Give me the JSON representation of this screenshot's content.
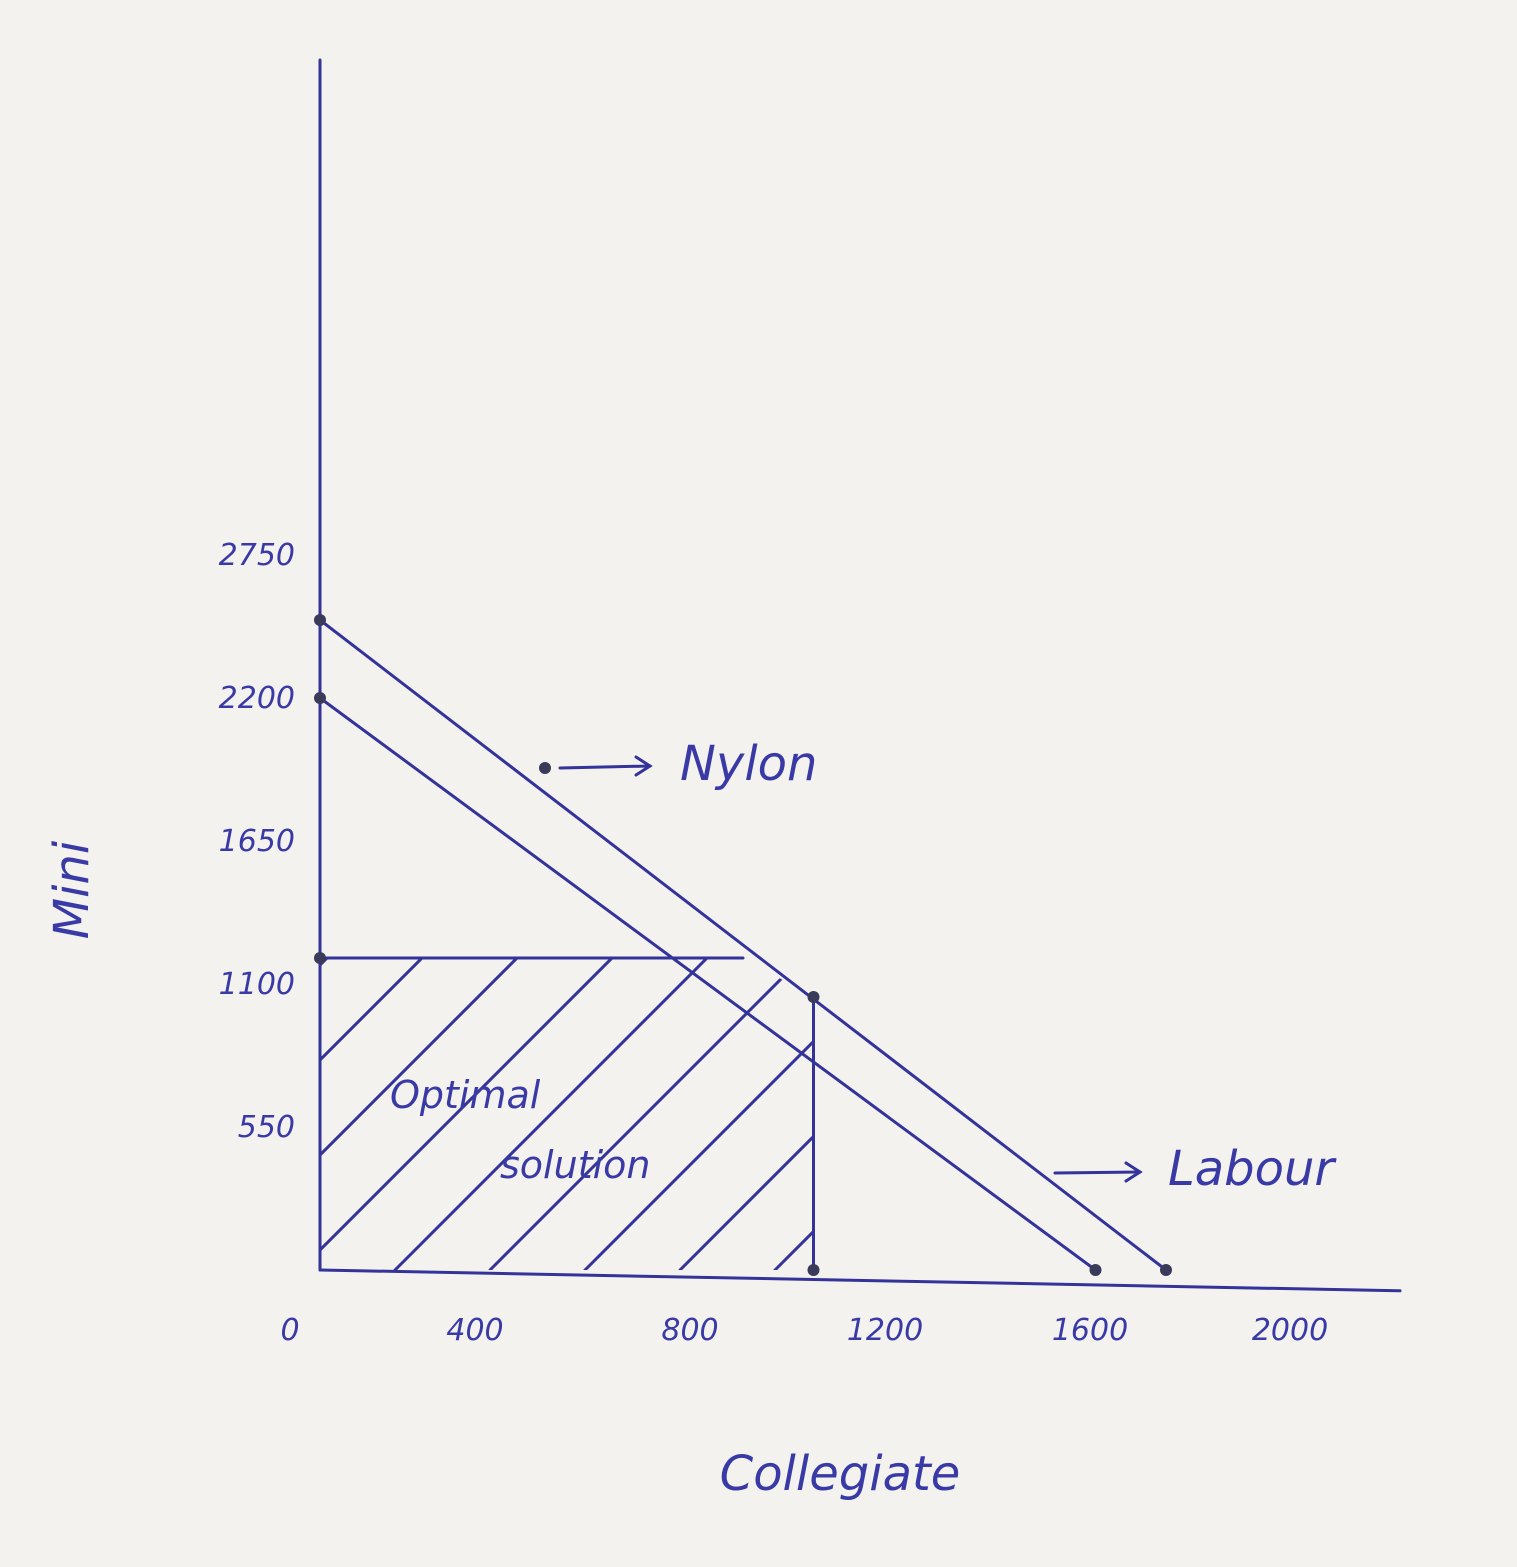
{
  "chart_data": {
    "type": "line",
    "xlabel": "Collegiate",
    "ylabel": "Mini",
    "x_ticks": [
      "0",
      "400",
      "800",
      "1200",
      "1600",
      "2000"
    ],
    "y_ticks": [
      "550",
      "1100",
      "1650",
      "2200",
      "2750"
    ],
    "xlim": [
      0,
      2100
    ],
    "ylim": [
      0,
      3000
    ],
    "series": [
      {
        "name": "Nylon",
        "points": [
          [
            0,
            2200
          ],
          [
            1650,
            0
          ]
        ]
      },
      {
        "name": "Labour",
        "points": [
          [
            0,
            2500
          ],
          [
            1800,
            0
          ]
        ]
      }
    ],
    "constraint_lines": [
      {
        "points": [
          [
            0,
            1200
          ],
          [
            900,
            1200
          ]
        ]
      },
      {
        "points": [
          [
            1050,
            0
          ],
          [
            1050,
            1050
          ]
        ]
      }
    ],
    "marked_points": [
      [
        0,
        2500
      ],
      [
        0,
        2200
      ],
      [
        0,
        1200
      ],
      [
        1050,
        0
      ],
      [
        1650,
        0
      ],
      [
        1800,
        0
      ],
      [
        1050,
        1050
      ]
    ],
    "annotations": [
      "Optimal",
      "solution"
    ],
    "feasible_region": [
      [
        0,
        0
      ],
      [
        0,
        1200
      ],
      [
        900,
        1200
      ],
      [
        1050,
        1050
      ],
      [
        1050,
        0
      ]
    ],
    "grid": false,
    "colors": {
      "ink": "#33339a",
      "paper": "#f4f2ef"
    }
  }
}
